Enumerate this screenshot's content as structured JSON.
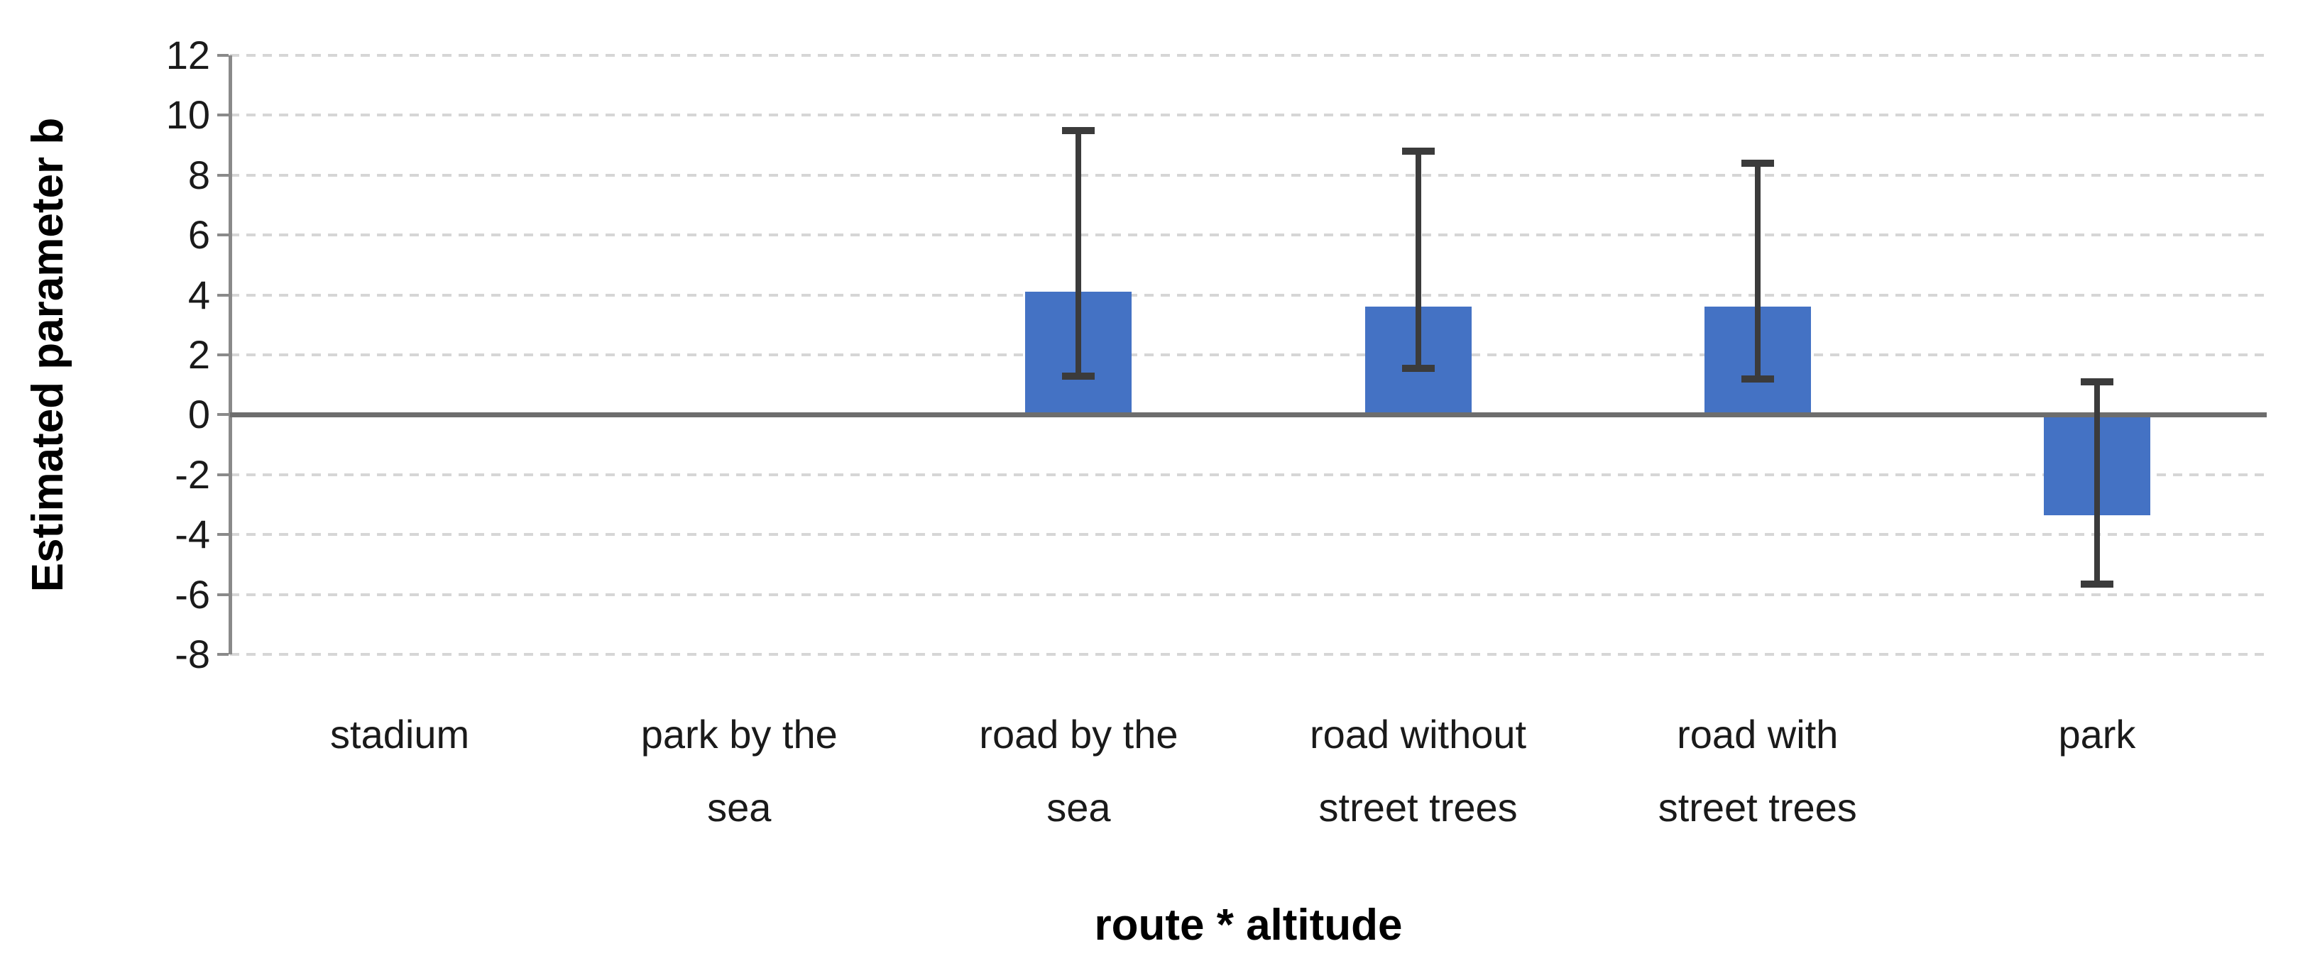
{
  "chart_data": {
    "type": "bar",
    "title": "",
    "xlabel": "route * altitude",
    "ylabel": "Estimated parameter b",
    "ylim": [
      -8,
      12
    ],
    "ytick_step": 2,
    "yticks": [
      12,
      10,
      8,
      6,
      4,
      2,
      0,
      -2,
      -4,
      -6,
      -8
    ],
    "grid": "horizontal-dashed",
    "legend_position": "none",
    "categories": [
      "stadium",
      "park by the sea",
      "road by the sea",
      "road without street trees",
      "road with street trees",
      "park"
    ],
    "category_lines": [
      [
        "stadium"
      ],
      [
        "park by the",
        "sea"
      ],
      [
        "road by the",
        "sea"
      ],
      [
        "road without",
        "street trees"
      ],
      [
        "road with",
        "street trees"
      ],
      [
        "park"
      ]
    ],
    "series": [
      {
        "name": "Estimated parameter b",
        "values": [
          0,
          0,
          4.1,
          3.6,
          3.6,
          -3.35
        ],
        "error_low": [
          null,
          null,
          1.3,
          1.55,
          1.2,
          -5.65
        ],
        "error_high": [
          null,
          null,
          9.5,
          8.8,
          8.4,
          1.1
        ]
      }
    ],
    "colors": {
      "bar": "#4472C4",
      "error_bar": "#3B3B3B",
      "zero_line": "#6D6D6D",
      "axis_line": "#8A8A8A",
      "gridline": "#D6D6D6",
      "text": "#1A1A1A"
    }
  }
}
